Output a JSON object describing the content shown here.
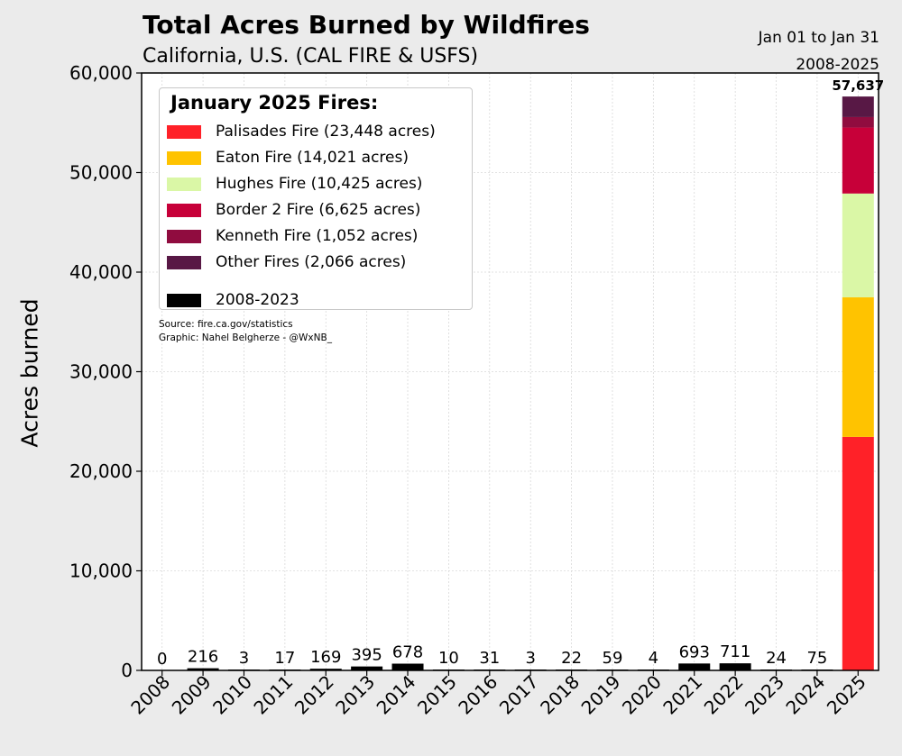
{
  "header": {
    "title": "Total Acres Burned by Wildfires",
    "subtitle": "California, U.S. (CAL FIRE & USFS)",
    "date_range": "Jan 01 to Jan 31",
    "year_range": "2008-2025"
  },
  "legend": {
    "title": "January 2025 Fires:",
    "items": [
      {
        "label": "Palisades Fire (23,448 acres)",
        "color": "#ff2128"
      },
      {
        "label": "Eaton Fire (14,021 acres)",
        "color": "#ffc300"
      },
      {
        "label": "Hughes Fire (10,425 acres)",
        "color": "#daf7a6"
      },
      {
        "label": "Border 2 Fire (6,625 acres)",
        "color": "#c70039"
      },
      {
        "label": "Kenneth Fire (1,052 acres)",
        "color": "#900c3f"
      },
      {
        "label": "Other Fires (2,066 acres)",
        "color": "#581845"
      }
    ],
    "history_label": "2008-2023",
    "history_color": "#000000"
  },
  "credits": {
    "source": "Source: fire.ca.gov/statistics",
    "graphic": "Graphic: Nahel Belgherze - @WxNB_"
  },
  "chart_data": {
    "type": "bar",
    "title": "Total Acres Burned by Wildfires",
    "xlabel": "",
    "ylabel": "Acres burned",
    "ylim": [
      0,
      60000
    ],
    "yticks": [
      0,
      10000,
      20000,
      30000,
      40000,
      50000,
      60000
    ],
    "ytick_labels": [
      "0",
      "10,000",
      "20,000",
      "30,000",
      "40,000",
      "50,000",
      "60,000"
    ],
    "grid": true,
    "categories": [
      "2008",
      "2009",
      "2010",
      "2011",
      "2012",
      "2013",
      "2014",
      "2015",
      "2016",
      "2017",
      "2018",
      "2019",
      "2020",
      "2021",
      "2022",
      "2023",
      "2024",
      "2025"
    ],
    "values": [
      0,
      216,
      3,
      17,
      169,
      395,
      678,
      10,
      31,
      3,
      22,
      59,
      4,
      693,
      711,
      24,
      75,
      57637
    ],
    "value_labels": [
      "0",
      "216",
      "3",
      "17",
      "169",
      "395",
      "678",
      "10",
      "31",
      "3",
      "22",
      "59",
      "4",
      "693",
      "711",
      "24",
      "75",
      "57,637"
    ],
    "stacked_2025": [
      {
        "name": "Palisades Fire",
        "value": 23448,
        "color": "#ff2128"
      },
      {
        "name": "Eaton Fire",
        "value": 14021,
        "color": "#ffc300"
      },
      {
        "name": "Hughes Fire",
        "value": 10425,
        "color": "#daf7a6"
      },
      {
        "name": "Border 2 Fire",
        "value": 6625,
        "color": "#c70039"
      },
      {
        "name": "Kenneth Fire",
        "value": 1052,
        "color": "#900c3f"
      },
      {
        "name": "Other Fires",
        "value": 2066,
        "color": "#581845"
      }
    ]
  }
}
